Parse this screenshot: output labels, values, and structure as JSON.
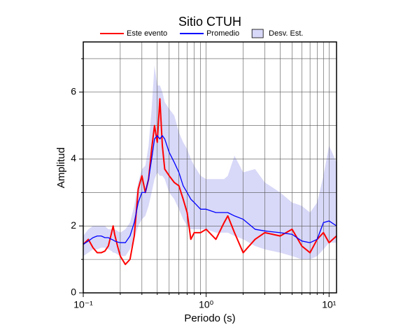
{
  "chart_data": {
    "type": "line",
    "title": "Sitio CTUH",
    "x_label": "Periodo (s)",
    "y_label": "Amplitud",
    "x_scale": "log",
    "grid": true,
    "xlim": [
      0.1,
      11.5
    ],
    "ylim": [
      0,
      7.5
    ],
    "xticks": [
      {
        "value": 0.1,
        "label": "10⁻¹"
      },
      {
        "value": 1,
        "label": "10⁰"
      },
      {
        "value": 10,
        "label": "10¹"
      }
    ],
    "xminor": [
      0.2,
      0.3,
      0.4,
      0.5,
      0.6,
      0.7,
      0.8,
      0.9,
      2,
      3,
      4,
      5,
      6,
      7,
      8,
      9
    ],
    "yticks": [
      0,
      2,
      4,
      6
    ],
    "yminor": [
      1,
      3,
      5,
      7
    ],
    "x": [
      0.1,
      0.11,
      0.12,
      0.13,
      0.14,
      0.15,
      0.16,
      0.17,
      0.175,
      0.18,
      0.19,
      0.2,
      0.22,
      0.24,
      0.26,
      0.28,
      0.3,
      0.32,
      0.34,
      0.36,
      0.38,
      0.4,
      0.42,
      0.44,
      0.46,
      0.5,
      0.55,
      0.6,
      0.65,
      0.7,
      0.75,
      0.8,
      0.9,
      1.0,
      1.2,
      1.4,
      1.5,
      1.7,
      2.0,
      2.5,
      3.0,
      4.0,
      5.0,
      6.0,
      7.0,
      8.0,
      9.0,
      10,
      11.5
    ],
    "series": [
      {
        "name": "Este evento",
        "color": "#ff0000",
        "width": 2,
        "values": [
          1.45,
          1.6,
          1.35,
          1.2,
          1.2,
          1.25,
          1.4,
          1.8,
          2.0,
          1.75,
          1.4,
          1.1,
          0.85,
          1.0,
          1.7,
          3.1,
          3.5,
          3.0,
          3.4,
          4.3,
          5.0,
          4.5,
          5.8,
          4.4,
          3.7,
          3.5,
          3.3,
          3.2,
          2.8,
          2.4,
          1.6,
          1.8,
          1.8,
          1.9,
          1.6,
          2.1,
          2.3,
          1.8,
          1.2,
          1.6,
          1.8,
          1.7,
          1.9,
          1.4,
          1.2,
          1.6,
          1.8,
          1.5,
          1.7
        ]
      },
      {
        "name": "Promedio",
        "color": "#0000ff",
        "width": 1.3,
        "values": [
          1.45,
          1.55,
          1.65,
          1.7,
          1.7,
          1.65,
          1.65,
          1.6,
          1.58,
          1.55,
          1.52,
          1.5,
          1.5,
          1.7,
          2.1,
          2.7,
          3.0,
          3.0,
          3.4,
          4.0,
          4.6,
          4.7,
          4.6,
          4.7,
          4.6,
          4.2,
          3.9,
          3.6,
          3.2,
          3.0,
          2.8,
          2.7,
          2.5,
          2.5,
          2.4,
          2.4,
          2.4,
          2.3,
          2.2,
          1.9,
          1.85,
          1.8,
          1.75,
          1.55,
          1.5,
          1.6,
          2.1,
          2.15,
          2.0
        ]
      },
      {
        "name": "Desv. Est.",
        "color": "#d8d8f8",
        "band": true,
        "lower": [
          1.1,
          1.2,
          1.3,
          1.3,
          1.35,
          1.35,
          1.3,
          1.25,
          1.2,
          1.2,
          1.15,
          1.1,
          1.1,
          1.3,
          1.6,
          2.0,
          2.2,
          2.3,
          2.6,
          3.0,
          3.4,
          3.6,
          3.5,
          3.5,
          3.4,
          3.0,
          2.8,
          2.5,
          2.2,
          2.0,
          1.9,
          1.9,
          1.9,
          1.9,
          1.8,
          1.8,
          1.8,
          1.7,
          1.6,
          1.4,
          1.3,
          1.2,
          1.1,
          1.0,
          1.0,
          1.1,
          1.3,
          1.5,
          1.5
        ],
        "upper": [
          1.7,
          1.9,
          2.0,
          2.0,
          2.0,
          2.0,
          1.9,
          1.9,
          1.9,
          1.9,
          1.85,
          1.8,
          1.9,
          2.1,
          2.6,
          3.3,
          3.7,
          3.8,
          4.4,
          5.5,
          6.8,
          6.2,
          6.2,
          6.0,
          5.7,
          5.5,
          5.3,
          4.8,
          4.5,
          4.3,
          4.0,
          3.8,
          3.5,
          3.4,
          3.4,
          3.4,
          3.5,
          4.1,
          3.6,
          3.7,
          3.3,
          3.0,
          2.7,
          2.6,
          2.4,
          2.7,
          3.5,
          4.4,
          3.9
        ]
      }
    ]
  }
}
